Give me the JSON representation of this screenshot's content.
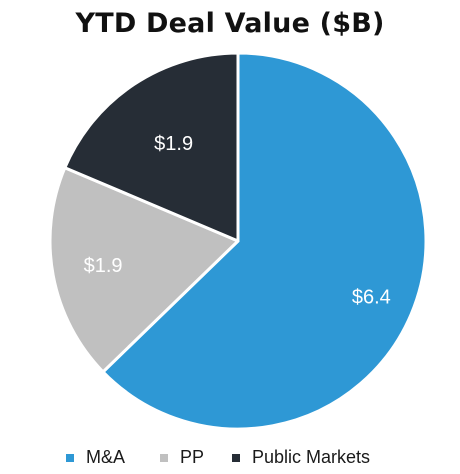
{
  "chart_data": {
    "type": "pie",
    "title": "YTD Deal Value ($B)",
    "categories": [
      "M&A",
      "PP",
      "Public Markets"
    ],
    "values": [
      6.4,
      1.9,
      1.9
    ],
    "labels": [
      "$6.4",
      "$1.9",
      "$1.9"
    ],
    "colors": [
      "#2e98d5",
      "#c0c0c0",
      "#262d36"
    ],
    "legend_position": "bottom",
    "start_angle": "12 o'clock",
    "direction": "clockwise"
  }
}
